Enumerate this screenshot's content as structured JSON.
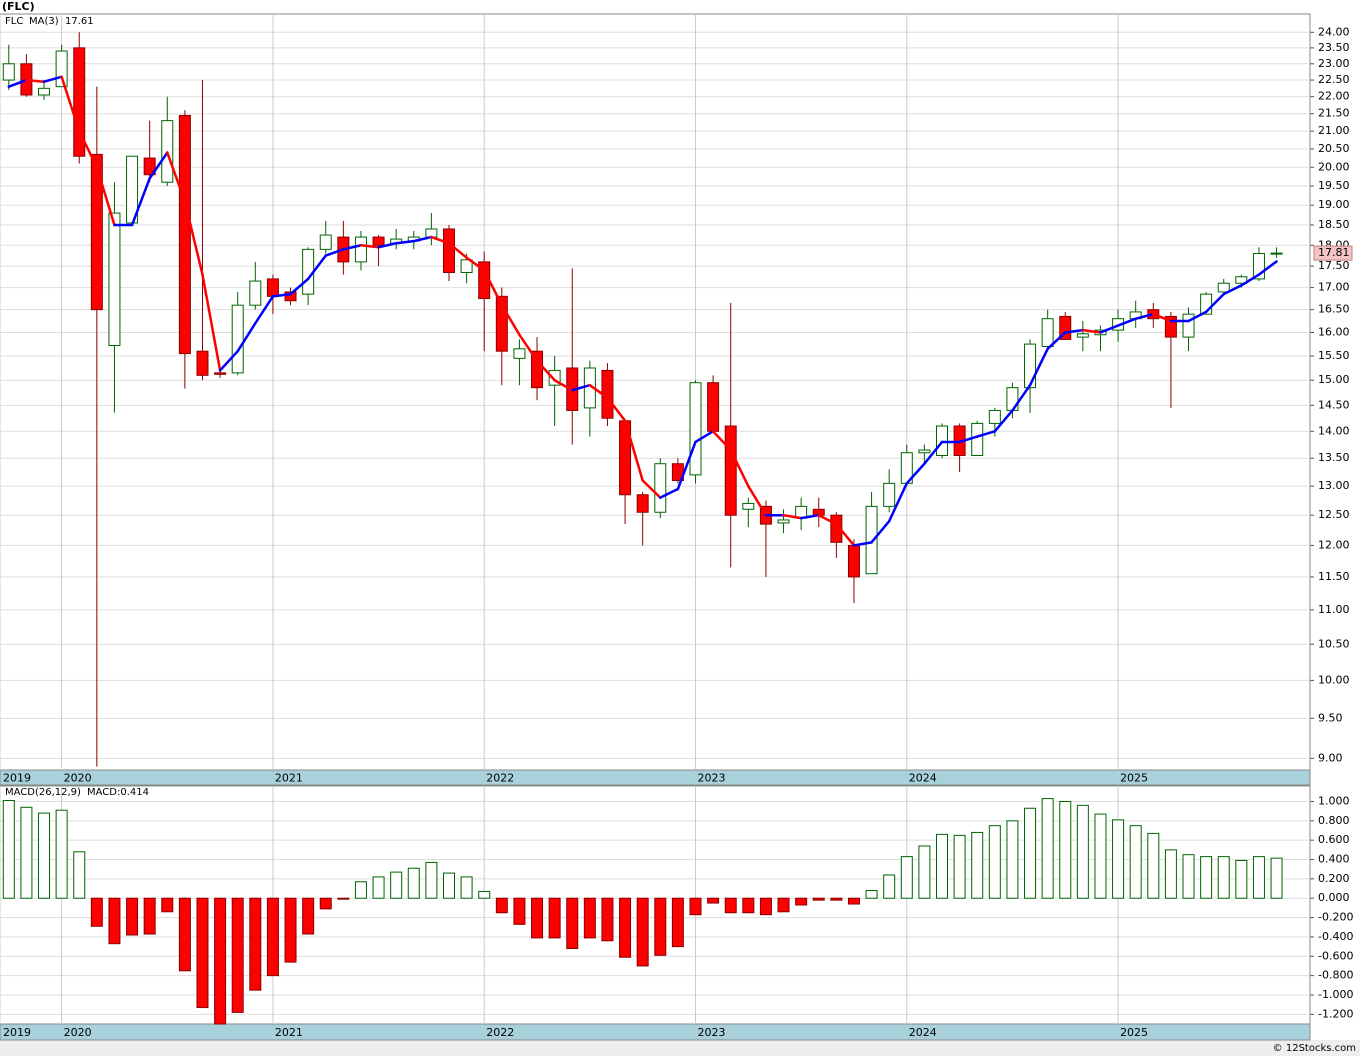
{
  "chart_data": [
    {
      "type": "candlestick",
      "title": "(FLC)",
      "symbol": "FLC",
      "ma_last_label": "17.61",
      "last_label": "17.81",
      "log_scale": true,
      "grid": true,
      "up_color": "#ffffff",
      "up_edge": "#006400",
      "down_color": "#ff0000",
      "down_edge": "#8b0000",
      "open": [
        22.5,
        23.0,
        22.05,
        22.3,
        23.5,
        20.35,
        15.72,
        18.55,
        20.25,
        19.6,
        21.45,
        15.6,
        15.15,
        15.15,
        16.6,
        17.2,
        16.9,
        16.85,
        17.9,
        18.2,
        17.6,
        18.2,
        18.05,
        18.1,
        18.2,
        18.4,
        17.35,
        17.6,
        16.8,
        15.45,
        15.6,
        14.9,
        15.25,
        14.45,
        15.2,
        14.2,
        12.85,
        12.55,
        13.4,
        13.2,
        14.95,
        14.1,
        12.6,
        12.65,
        12.37,
        12.45,
        12.6,
        12.5,
        12.0,
        11.55,
        12.65,
        13.05,
        13.6,
        13.55,
        14.1,
        13.55,
        14.15,
        14.4,
        14.85,
        15.7,
        16.35,
        15.9,
        15.95,
        16.05,
        16.3,
        16.5,
        16.35,
        15.9,
        16.4,
        16.9,
        17.1,
        17.2,
        17.8
      ],
      "high": [
        23.6,
        23.3,
        22.5,
        23.6,
        24.0,
        22.3,
        19.6,
        20.3,
        21.3,
        22.0,
        21.6,
        22.5,
        15.2,
        16.9,
        17.6,
        17.3,
        17.0,
        17.95,
        18.6,
        18.6,
        18.35,
        18.25,
        18.4,
        18.35,
        18.8,
        18.5,
        17.8,
        17.85,
        17.0,
        15.85,
        15.9,
        15.5,
        17.45,
        15.4,
        15.35,
        14.2,
        12.9,
        13.5,
        13.5,
        15.0,
        15.1,
        16.65,
        12.8,
        12.75,
        12.6,
        12.8,
        12.8,
        12.55,
        12.1,
        12.9,
        13.3,
        13.75,
        13.75,
        14.15,
        14.15,
        14.2,
        14.45,
        14.95,
        15.85,
        16.5,
        16.45,
        16.25,
        16.15,
        16.5,
        16.7,
        16.65,
        16.45,
        16.55,
        16.9,
        17.2,
        17.3,
        17.95,
        17.95
      ],
      "low": [
        22.2,
        22.0,
        21.9,
        22.3,
        20.1,
        8.9,
        14.36,
        18.5,
        19.6,
        19.5,
        14.83,
        15.0,
        15.05,
        15.1,
        16.5,
        16.4,
        16.6,
        16.6,
        17.8,
        17.3,
        17.4,
        17.5,
        17.9,
        17.9,
        18.0,
        17.15,
        17.1,
        15.6,
        14.9,
        14.9,
        14.6,
        14.1,
        13.75,
        13.9,
        14.1,
        12.35,
        12.0,
        12.45,
        13.05,
        13.05,
        14.0,
        11.65,
        12.3,
        11.5,
        12.2,
        12.25,
        12.3,
        11.8,
        11.1,
        11.55,
        12.55,
        13.0,
        13.4,
        13.5,
        13.25,
        13.55,
        13.9,
        14.25,
        14.35,
        15.6,
        15.85,
        15.6,
        15.6,
        15.8,
        16.1,
        16.1,
        14.45,
        15.6,
        16.4,
        16.9,
        17.0,
        17.15,
        17.7
      ],
      "close": [
        23.0,
        22.05,
        22.25,
        23.4,
        20.3,
        16.5,
        18.8,
        20.3,
        19.8,
        21.3,
        15.55,
        15.1,
        15.12,
        16.6,
        17.15,
        16.8,
        16.7,
        17.9,
        18.25,
        17.6,
        18.2,
        18.0,
        18.15,
        18.2,
        18.4,
        17.35,
        17.65,
        16.75,
        15.6,
        15.65,
        14.85,
        15.2,
        14.4,
        15.25,
        14.25,
        12.85,
        12.55,
        13.4,
        13.1,
        14.95,
        14.0,
        12.5,
        12.7,
        12.35,
        12.42,
        12.65,
        12.5,
        12.05,
        11.5,
        12.65,
        13.05,
        13.6,
        13.65,
        14.1,
        13.55,
        14.15,
        14.4,
        14.85,
        15.75,
        16.3,
        15.85,
        15.97,
        16.05,
        16.3,
        16.45,
        16.3,
        15.9,
        16.4,
        16.85,
        17.1,
        17.25,
        17.8,
        17.81
      ],
      "series": [
        {
          "name": "MA(3)",
          "color": "#0000ff",
          "down_color": "#ff0000",
          "values": [
            22.3,
            22.5,
            22.45,
            22.6,
            21.0,
            20.0,
            18.5,
            18.5,
            19.7,
            20.4,
            19.1,
            17.3,
            15.2,
            15.6,
            16.2,
            16.8,
            16.85,
            17.2,
            17.75,
            17.9,
            18.0,
            17.95,
            18.05,
            18.1,
            18.2,
            18.05,
            17.7,
            17.4,
            16.6,
            15.95,
            15.4,
            15.0,
            14.8,
            14.9,
            14.65,
            14.2,
            13.1,
            12.8,
            12.95,
            13.8,
            14.0,
            13.65,
            13.0,
            12.5,
            12.5,
            12.45,
            12.5,
            12.35,
            12.0,
            12.05,
            12.4,
            13.05,
            13.4,
            13.8,
            13.8,
            13.9,
            14.0,
            14.4,
            14.9,
            15.65,
            16.0,
            16.05,
            16.0,
            16.15,
            16.3,
            16.4,
            16.25,
            16.25,
            16.45,
            16.85,
            17.05,
            17.3,
            17.61
          ]
        }
      ],
      "xlim": [
        -0.5,
        73.9
      ],
      "xticks": [
        {
          "value": -0.5,
          "label": "2019"
        },
        {
          "value": 3,
          "label": "2020"
        },
        {
          "value": 15,
          "label": "2021"
        },
        {
          "value": 27,
          "label": "2022"
        },
        {
          "value": 39,
          "label": "2023"
        },
        {
          "value": 51,
          "label": "2024"
        },
        {
          "value": 63,
          "label": "2025"
        }
      ],
      "ylim": [
        8.86,
        24.6
      ],
      "yticks": [
        {
          "value": 24,
          "label": "24.00"
        },
        {
          "value": 23.5,
          "label": "23.50"
        },
        {
          "value": 23,
          "label": "23.00"
        },
        {
          "value": 22.5,
          "label": "22.50"
        },
        {
          "value": 22,
          "label": "22.00"
        },
        {
          "value": 21.5,
          "label": "21.50"
        },
        {
          "value": 21,
          "label": "21.00"
        },
        {
          "value": 20.5,
          "label": "20.50"
        },
        {
          "value": 20,
          "label": "20.00"
        },
        {
          "value": 19.5,
          "label": "19.50"
        },
        {
          "value": 19,
          "label": "19.00"
        },
        {
          "value": 18.5,
          "label": "18.50"
        },
        {
          "value": 18,
          "label": "18.00"
        },
        {
          "value": 17.5,
          "label": "17.50"
        },
        {
          "value": 17,
          "label": "17.00"
        },
        {
          "value": 16.5,
          "label": "16.50"
        },
        {
          "value": 16,
          "label": "16.00"
        },
        {
          "value": 15.5,
          "label": "15.50"
        },
        {
          "value": 15,
          "label": "15.00"
        },
        {
          "value": 14.5,
          "label": "14.50"
        },
        {
          "value": 14,
          "label": "14.00"
        },
        {
          "value": 13.5,
          "label": "13.50"
        },
        {
          "value": 13,
          "label": "13.00"
        },
        {
          "value": 12.5,
          "label": "12.50"
        },
        {
          "value": 12,
          "label": "12.00"
        },
        {
          "value": 11.5,
          "label": "11.50"
        },
        {
          "value": 11,
          "label": "11.00"
        },
        {
          "value": 10.5,
          "label": "10.50"
        },
        {
          "value": 10,
          "label": "10.00"
        },
        {
          "value": 9.5,
          "label": "9.50"
        },
        {
          "value": 9,
          "label": "9.00"
        }
      ]
    },
    {
      "type": "bar",
      "name": "MACD(26,12,9)",
      "value_label": "MACD:0.414",
      "grid": true,
      "up_color": "#ffffff",
      "up_edge": "#006400",
      "down_color": "#ff0000",
      "down_edge": "#8b0000",
      "values": [
        1.01,
        0.94,
        0.88,
        0.91,
        0.48,
        -0.29,
        -0.47,
        -0.38,
        -0.37,
        -0.14,
        -0.75,
        -1.13,
        -1.3,
        -1.18,
        -0.95,
        -0.8,
        -0.66,
        -0.37,
        -0.11,
        -0.01,
        0.17,
        0.22,
        0.27,
        0.31,
        0.37,
        0.26,
        0.22,
        0.07,
        -0.15,
        -0.27,
        -0.41,
        -0.41,
        -0.52,
        -0.41,
        -0.44,
        -0.61,
        -0.7,
        -0.59,
        -0.5,
        -0.17,
        -0.05,
        -0.15,
        -0.15,
        -0.17,
        -0.14,
        -0.07,
        -0.02,
        -0.02,
        -0.06,
        0.08,
        0.24,
        0.43,
        0.54,
        0.66,
        0.65,
        0.68,
        0.75,
        0.8,
        0.93,
        1.03,
        1.0,
        0.96,
        0.87,
        0.81,
        0.75,
        0.67,
        0.5,
        0.45,
        0.43,
        0.43,
        0.39,
        0.43,
        0.414
      ],
      "xlim": [
        -0.5,
        73.9
      ],
      "xticks": [
        {
          "value": -0.5,
          "label": "2019"
        },
        {
          "value": 3,
          "label": "2020"
        },
        {
          "value": 15,
          "label": "2021"
        },
        {
          "value": 27,
          "label": "2022"
        },
        {
          "value": 39,
          "label": "2023"
        },
        {
          "value": 51,
          "label": "2024"
        },
        {
          "value": 63,
          "label": "2025"
        }
      ],
      "ylim": [
        -1.3,
        1.16
      ],
      "yticks": [
        {
          "value": 1,
          "label": "1.000"
        },
        {
          "value": 0.8,
          "label": "0.800"
        },
        {
          "value": 0.6,
          "label": "0.600"
        },
        {
          "value": 0.4,
          "label": "0.400"
        },
        {
          "value": 0.2,
          "label": "0.200"
        },
        {
          "value": 0,
          "label": "0.000"
        },
        {
          "value": -0.2,
          "label": "-0.200"
        },
        {
          "value": -0.4,
          "label": "-0.400"
        },
        {
          "value": -0.6,
          "label": "-0.600"
        },
        {
          "value": -0.8,
          "label": "-0.800"
        },
        {
          "value": -1,
          "label": "-1.000"
        },
        {
          "value": -1.2,
          "label": "-1.200"
        }
      ]
    }
  ],
  "watermark": "© 12Stocks.com"
}
